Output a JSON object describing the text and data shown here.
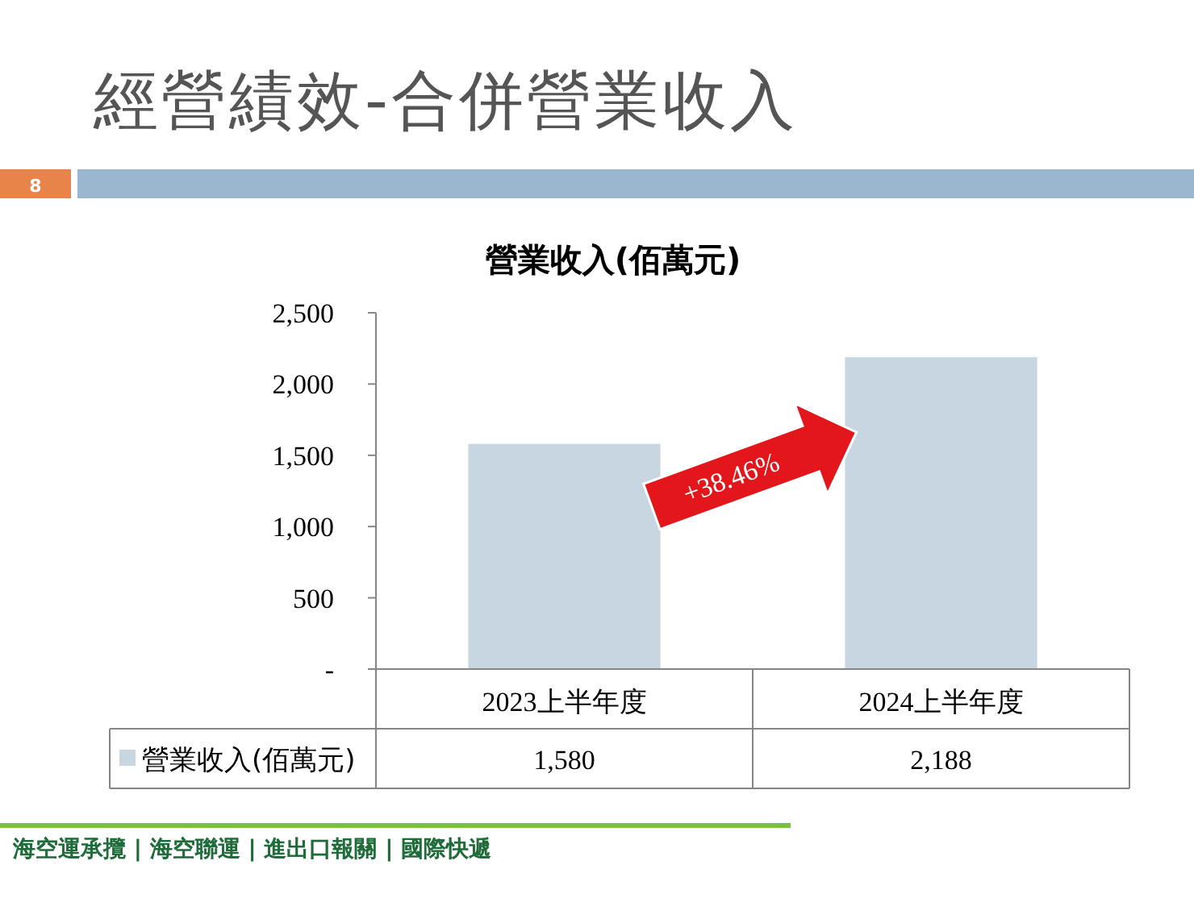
{
  "chart_data": {
    "type": "bar",
    "title": "經營績效-合併營業收入",
    "subtitle": "營業收入(佰萬元)",
    "categories": [
      "2023上半年度",
      "2024上半年度"
    ],
    "series": [
      {
        "name": "營業收入(佰萬元)",
        "color": "#c8d6e2",
        "values": [
          1580,
          2188
        ],
        "value_labels": [
          "1,580",
          "2,188"
        ]
      }
    ],
    "ylim": [
      0,
      2500
    ],
    "yticks": [
      {
        "value": 0,
        "label": "-"
      },
      {
        "value": 500,
        "label": "500"
      },
      {
        "value": 1000,
        "label": "1,000"
      },
      {
        "value": 1500,
        "label": "1,500"
      },
      {
        "value": 2000,
        "label": "2,000"
      },
      {
        "value": 2500,
        "label": "2,500"
      }
    ],
    "annotations": [
      "8",
      "+38.46%",
      "海空運承攬 | 海空聯運 | 進出口報關 | 國際快遞"
    ]
  }
}
